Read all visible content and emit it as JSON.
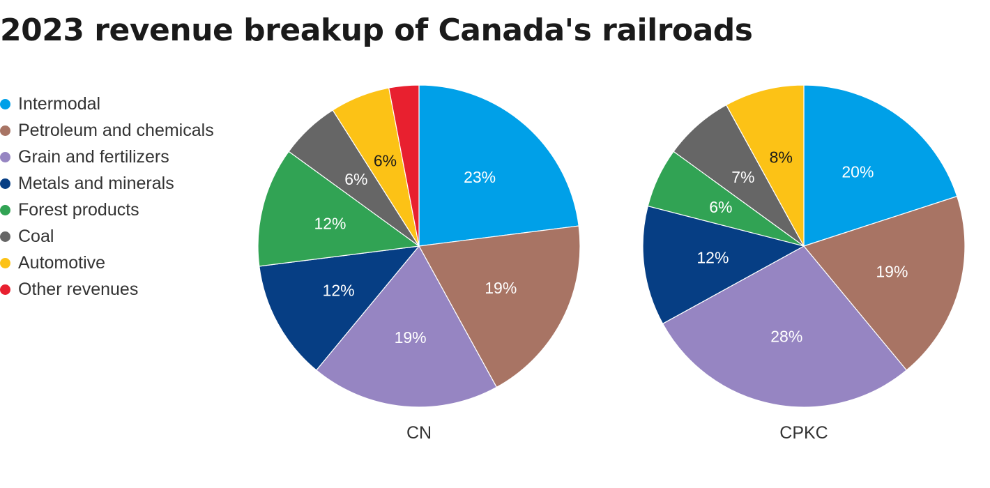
{
  "chart_data": {
    "type": "pie",
    "title": "2023 revenue breakup of Canada's railroads",
    "categories": [
      "Intermodal",
      "Petroleum and chemicals",
      "Grain and fertilizers",
      "Metals and minerals",
      "Forest products",
      "Coal",
      "Automotive",
      "Other revenues"
    ],
    "colors": [
      "#00a0e8",
      "#a87464",
      "#9685c2",
      "#063e84",
      "#31a354",
      "#666666",
      "#fcc216",
      "#e8202f"
    ],
    "legend_position": "left",
    "series": [
      {
        "name": "CN",
        "values": [
          23,
          19,
          19,
          12,
          12,
          6,
          6,
          3
        ],
        "labels": [
          "23%",
          "19%",
          "19%",
          "12%",
          "12%",
          "6%",
          "6%",
          ""
        ]
      },
      {
        "name": "CPKC",
        "values": [
          20,
          19,
          28,
          12,
          6,
          7,
          8,
          0
        ],
        "labels": [
          "20%",
          "19%",
          "28%",
          "12%",
          "6%",
          "7%",
          "8%",
          ""
        ]
      }
    ]
  }
}
